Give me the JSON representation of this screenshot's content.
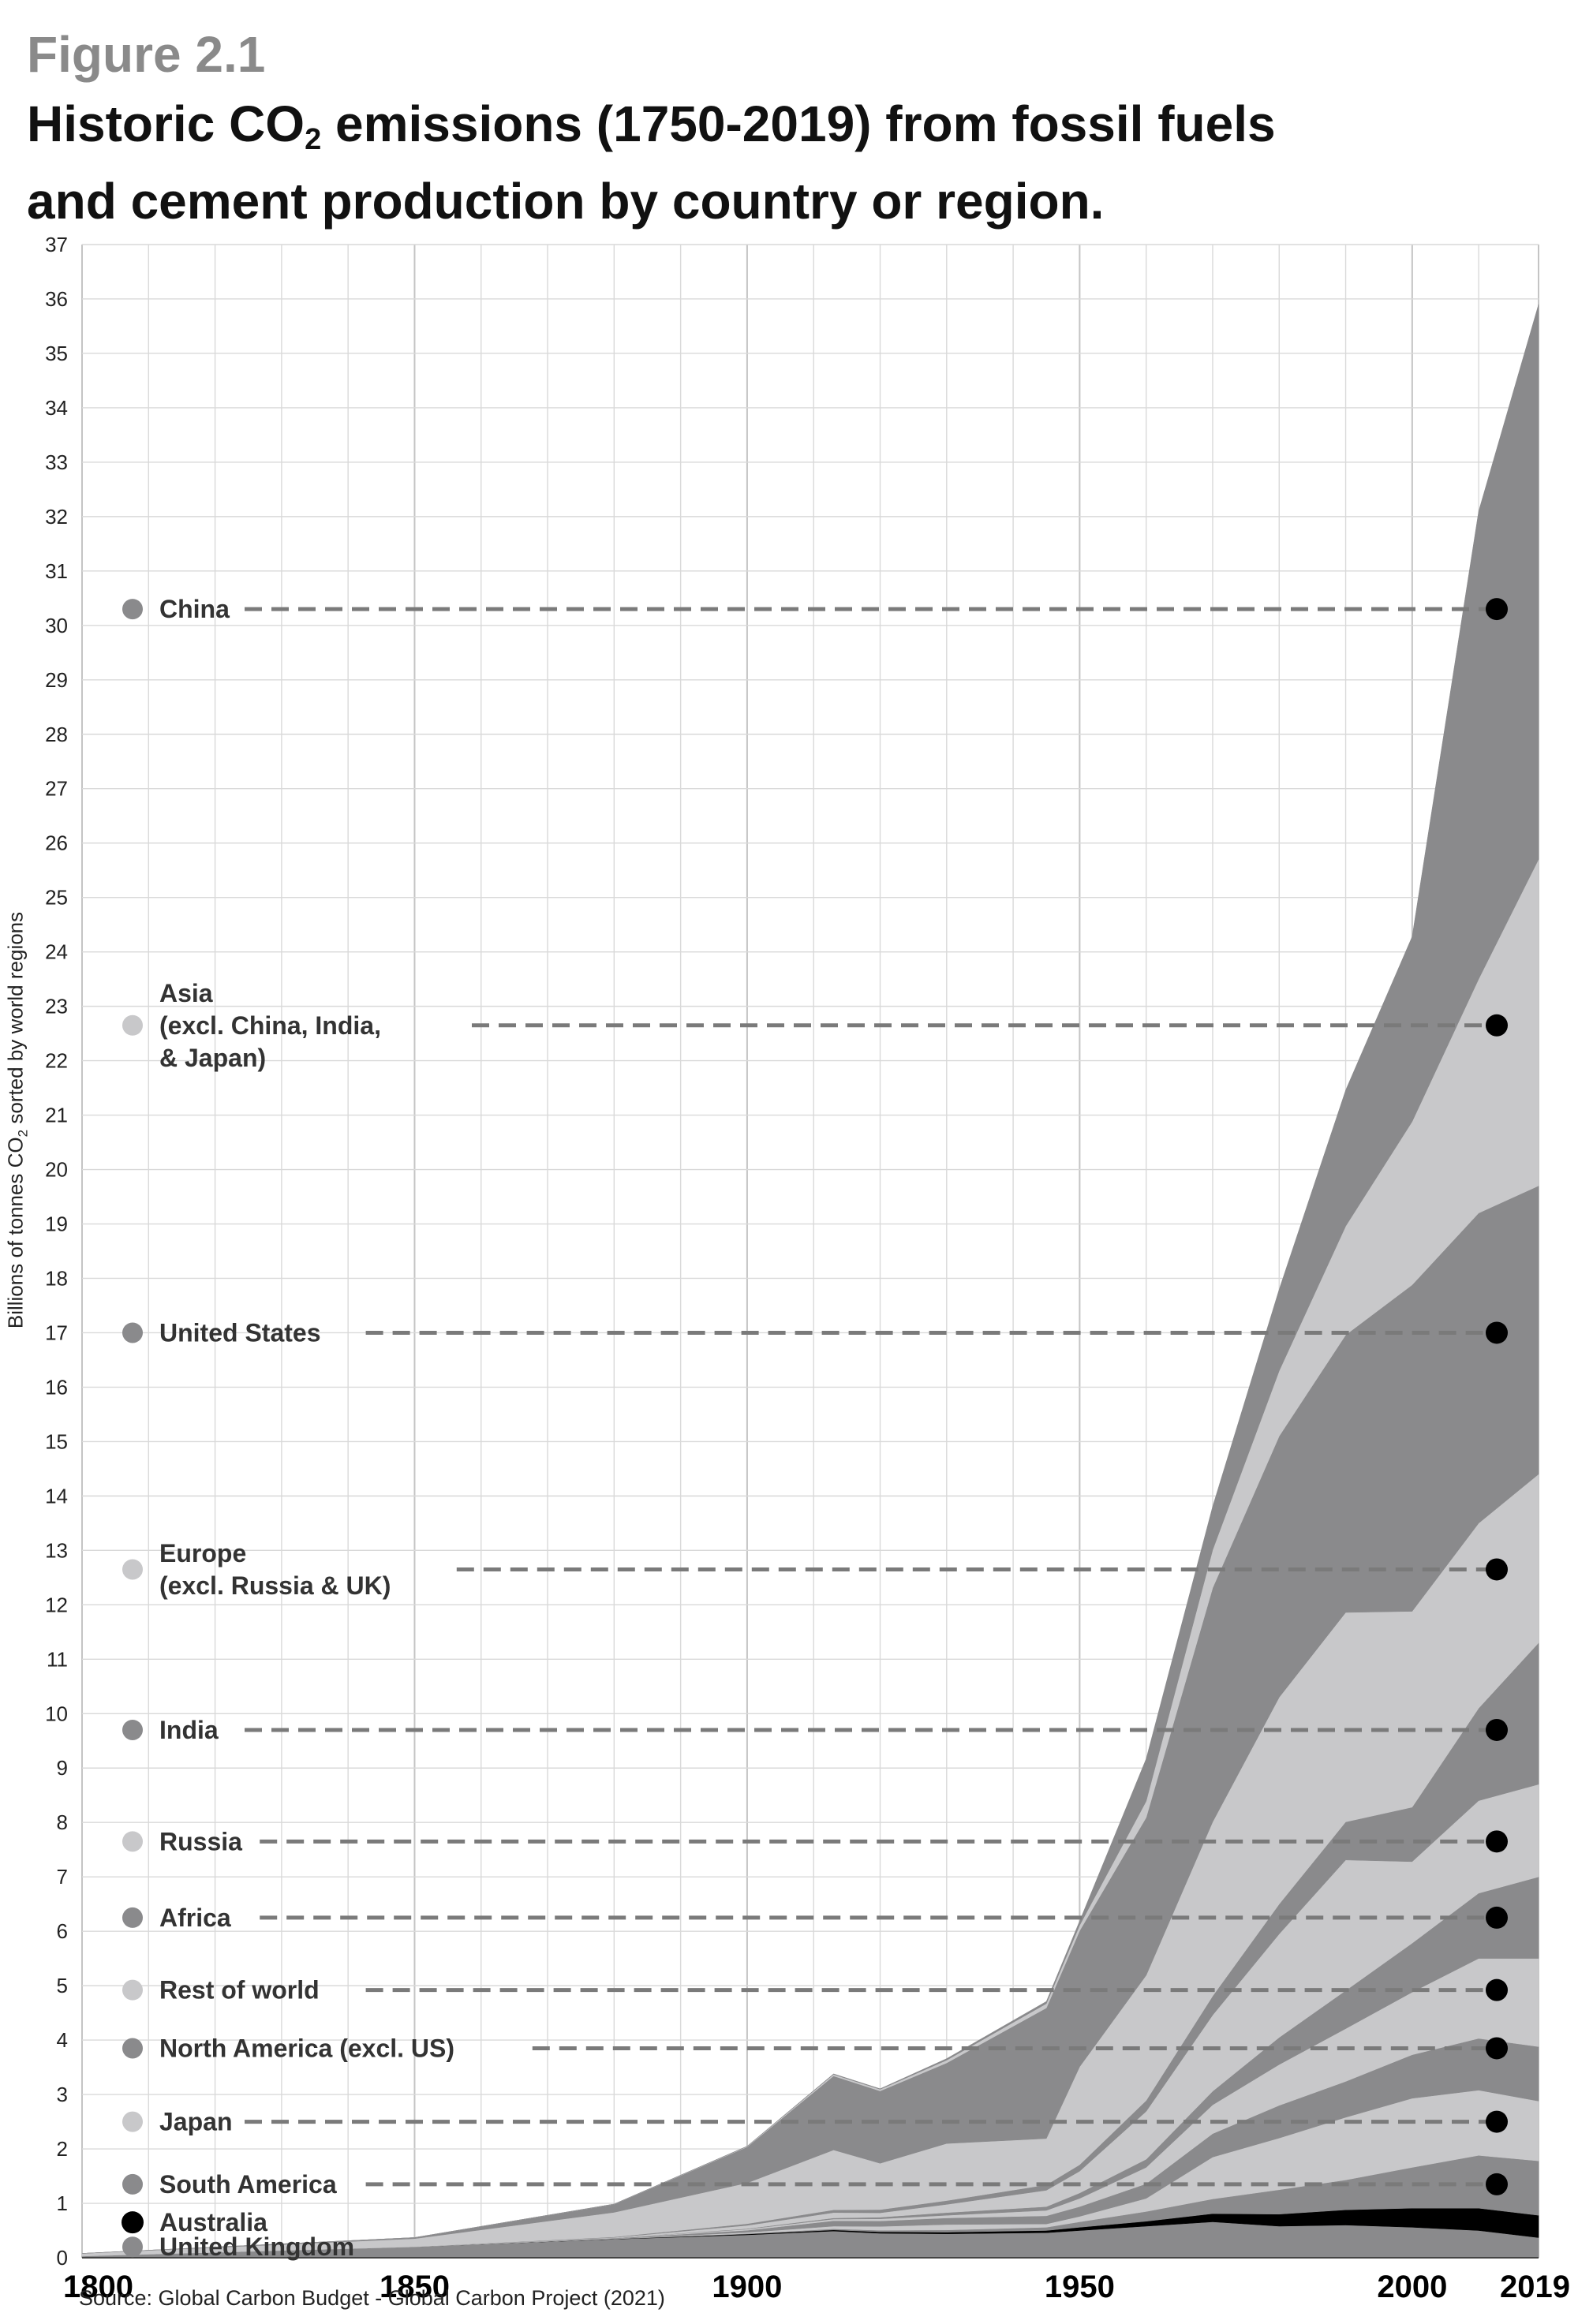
{
  "figure_label": "Figure 2.1",
  "title_line1_pre": "Historic CO",
  "title_line1_sub": "2",
  "title_line1_post": " emissions (1750-2019) from fossil fuels",
  "title_line2": "and cement production by country or region.",
  "ylabel_pre": "Billions of tonnes CO",
  "ylabel_sub": "2",
  "ylabel_post": " sorted by world regions",
  "source": "Source: Global Carbon Budget - Global Carbon Project (2021)",
  "colors": {
    "dark": "#8a8a8c",
    "light": "#c8c8ca",
    "black": "#000000",
    "grid": "#d9d9d9",
    "dash": "#7a7a7a"
  },
  "chart_data": {
    "type": "area",
    "stacked": true,
    "title": "Historic CO2 emissions (1750-2019) from fossil fuels and cement production by country or region.",
    "xlabel": "",
    "ylabel": "Billions of tonnes CO2 sorted by world regions",
    "xlim": [
      1800,
      2019
    ],
    "ylim": [
      0,
      37
    ],
    "x_ticks": [
      "1800",
      "1850",
      "1900",
      "1950",
      "2000",
      "2019"
    ],
    "y_ticks": [
      "0",
      "1",
      "2",
      "3",
      "4",
      "5",
      "6",
      "7",
      "8",
      "9",
      "10",
      "11",
      "12",
      "13",
      "14",
      "15",
      "16",
      "17",
      "18",
      "19",
      "20",
      "21",
      "22",
      "23",
      "24",
      "25",
      "26",
      "27",
      "28",
      "29",
      "30",
      "31",
      "32",
      "33",
      "34",
      "35",
      "36",
      "37"
    ],
    "x": [
      1800,
      1850,
      1880,
      1900,
      1913,
      1920,
      1930,
      1945,
      1950,
      1960,
      1970,
      1980,
      1990,
      2000,
      2010,
      2019
    ],
    "series": [
      {
        "name": "United Kingdom",
        "shade": "dark",
        "values": [
          0.03,
          0.2,
          0.34,
          0.42,
          0.49,
          0.45,
          0.44,
          0.46,
          0.5,
          0.58,
          0.66,
          0.58,
          0.6,
          0.56,
          0.5,
          0.37
        ]
      },
      {
        "name": "Australia",
        "shade": "black",
        "values": [
          0.0,
          0.0,
          0.005,
          0.015,
          0.02,
          0.025,
          0.03,
          0.04,
          0.06,
          0.09,
          0.15,
          0.22,
          0.28,
          0.35,
          0.41,
          0.41
        ]
      },
      {
        "name": "South America",
        "shade": "dark",
        "values": [
          0.0,
          0.0,
          0.002,
          0.01,
          0.02,
          0.03,
          0.04,
          0.06,
          0.1,
          0.18,
          0.27,
          0.45,
          0.55,
          0.75,
          0.97,
          1.0
        ]
      },
      {
        "name": "Japan",
        "shade": "light",
        "values": [
          0.0,
          0.0,
          0.003,
          0.02,
          0.05,
          0.07,
          0.1,
          0.06,
          0.1,
          0.24,
          0.77,
          0.95,
          1.15,
          1.27,
          1.2,
          1.1
        ]
      },
      {
        "name": "North America (excl. US)",
        "shade": "dark",
        "values": [
          0.0,
          0.001,
          0.01,
          0.04,
          0.1,
          0.1,
          0.12,
          0.15,
          0.18,
          0.27,
          0.43,
          0.6,
          0.66,
          0.8,
          0.95,
          1.0
        ]
      },
      {
        "name": "Rest of world",
        "shade": "light",
        "values": [
          0.0,
          0.0,
          0.002,
          0.02,
          0.03,
          0.04,
          0.05,
          0.1,
          0.15,
          0.3,
          0.53,
          0.75,
          0.97,
          1.15,
          1.47,
          1.62
        ]
      },
      {
        "name": "Africa",
        "shade": "dark",
        "values": [
          0.0,
          0.0,
          0.001,
          0.01,
          0.02,
          0.03,
          0.05,
          0.07,
          0.1,
          0.15,
          0.25,
          0.5,
          0.7,
          0.9,
          1.2,
          1.5
        ]
      },
      {
        "name": "Russia",
        "shade": "light",
        "values": [
          0.0,
          0.0,
          0.01,
          0.06,
          0.1,
          0.08,
          0.15,
          0.3,
          0.4,
          0.88,
          1.4,
          1.9,
          2.4,
          1.5,
          1.7,
          1.7
        ]
      },
      {
        "name": "India",
        "shade": "dark",
        "values": [
          0.0,
          0.0,
          0.01,
          0.03,
          0.05,
          0.06,
          0.07,
          0.1,
          0.12,
          0.2,
          0.35,
          0.55,
          0.7,
          1.0,
          1.7,
          2.6
        ]
      },
      {
        "name": "Europe (excl. Russia & UK)",
        "shade": "light",
        "values": [
          0.05,
          0.15,
          0.45,
          0.75,
          1.1,
          0.85,
          1.05,
          0.85,
          1.8,
          2.3,
          3.2,
          3.8,
          3.85,
          3.6,
          3.4,
          3.1
        ]
      },
      {
        "name": "United States",
        "shade": "dark",
        "values": [
          0.0,
          0.02,
          0.15,
          0.66,
          1.36,
          1.33,
          1.48,
          2.4,
          2.5,
          2.9,
          4.3,
          4.8,
          5.1,
          6.0,
          5.7,
          5.3
        ]
      },
      {
        "name": "Asia (excl. China, India, & Japan)",
        "shade": "light",
        "values": [
          0.0,
          0.0,
          0.002,
          0.01,
          0.03,
          0.03,
          0.05,
          0.08,
          0.1,
          0.3,
          0.7,
          1.2,
          2.0,
          3.0,
          4.3,
          6.0
        ]
      },
      {
        "name": "China",
        "shade": "dark",
        "values": [
          0.0,
          0.0,
          0.002,
          0.005,
          0.01,
          0.01,
          0.03,
          0.04,
          0.08,
          0.78,
          0.8,
          1.5,
          2.5,
          3.4,
          8.6,
          10.2
        ]
      }
    ],
    "legend": [
      {
        "label": "China",
        "shade": "dark",
        "at": 30.3
      },
      {
        "label": "Asia",
        "label2": "(excl. China, India,",
        "label3": "& Japan)",
        "shade": "light",
        "at": 22.65
      },
      {
        "label": "United States",
        "shade": "dark",
        "at": 17.0
      },
      {
        "label": "Europe",
        "label2": "(excl. Russia & UK)",
        "shade": "light",
        "at": 12.65
      },
      {
        "label": "India",
        "shade": "dark",
        "at": 9.7
      },
      {
        "label": "Russia",
        "shade": "light",
        "at": 7.65
      },
      {
        "label": "Africa",
        "shade": "dark",
        "at": 6.25
      },
      {
        "label": "Rest of world",
        "shade": "light",
        "at": 4.92
      },
      {
        "label": "North America (excl. US)",
        "shade": "dark",
        "at": 3.85
      },
      {
        "label": "Japan",
        "shade": "light",
        "at": 2.5
      },
      {
        "label": "South America",
        "shade": "dark",
        "at": 1.35
      },
      {
        "label": "Australia",
        "shade": "black",
        "at": 0.65
      },
      {
        "label": "United Kingdom",
        "shade": "dark",
        "at": 0.2
      }
    ]
  }
}
